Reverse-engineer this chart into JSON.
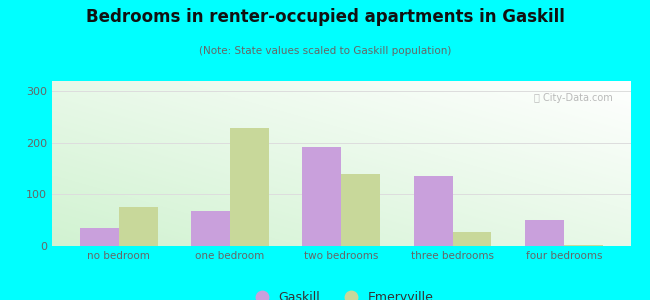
{
  "title": "Bedrooms in renter-occupied apartments in Gaskill",
  "subtitle": "(Note: State values scaled to Gaskill population)",
  "categories": [
    "no bedroom",
    "one bedroom",
    "two bedrooms",
    "three bedrooms",
    "four bedrooms"
  ],
  "gaskill_values": [
    35,
    68,
    192,
    135,
    50
  ],
  "emeryville_values": [
    75,
    228,
    140,
    27,
    2
  ],
  "gaskill_color": "#c9a0dc",
  "emeryville_color": "#c8d89a",
  "background_outer": "#00ffff",
  "plot_bg_top_right": "#ffffff",
  "plot_bg_bottom_left": "#d0ecd8",
  "ylim": [
    0,
    320
  ],
  "yticks": [
    0,
    100,
    200,
    300
  ],
  "bar_width": 0.35,
  "legend_labels": [
    "Gaskill",
    "Emeryville"
  ],
  "title_color": "#111111",
  "subtitle_color": "#666666",
  "tick_color": "#666666"
}
